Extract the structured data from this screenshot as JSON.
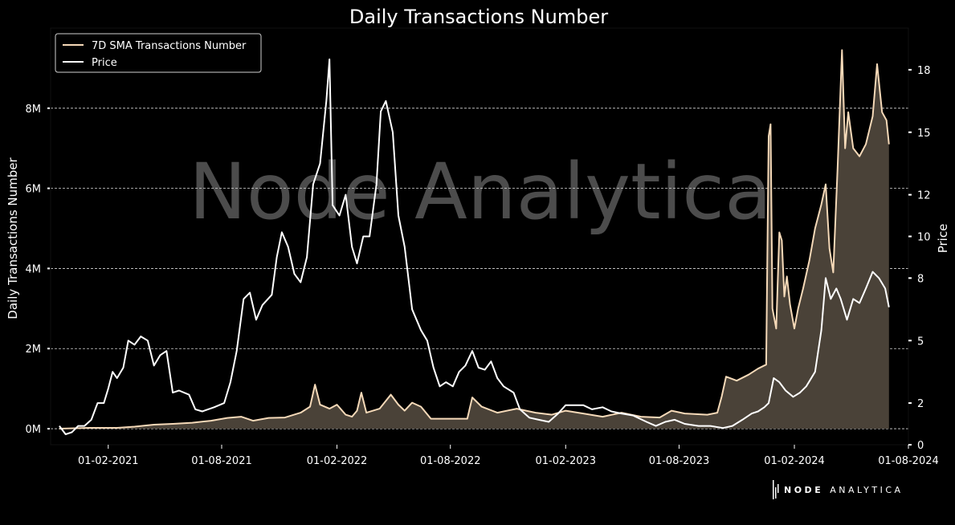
{
  "chart_data": {
    "type": "line",
    "title": "Daily Transactions Number",
    "ylabel_left": "Daily Transactions Number",
    "ylabel_right": "Price",
    "watermark": "Node Analytica",
    "brand": {
      "bold": "NODE",
      "light": "ANALYTICA"
    },
    "grid": "horizontal-dashed",
    "legend_position": "top-left",
    "x_range": [
      "2020-11-01",
      "2024-08-01"
    ],
    "x_ticks": [
      {
        "date": "2021-02-01",
        "label": "01-02-2021"
      },
      {
        "date": "2021-08-01",
        "label": "01-08-2021"
      },
      {
        "date": "2022-02-01",
        "label": "01-02-2022"
      },
      {
        "date": "2022-08-01",
        "label": "01-08-2022"
      },
      {
        "date": "2023-02-01",
        "label": "01-02-2023"
      },
      {
        "date": "2023-08-01",
        "label": "01-08-2023"
      },
      {
        "date": "2024-02-01",
        "label": "01-02-2024"
      },
      {
        "date": "2024-08-01",
        "label": "01-08-2024"
      }
    ],
    "y_left": {
      "range": [
        -400000,
        10000000
      ],
      "ticks": [
        {
          "v": 0,
          "label": "0M"
        },
        {
          "v": 2000000,
          "label": "2M"
        },
        {
          "v": 4000000,
          "label": "4M"
        },
        {
          "v": 6000000,
          "label": "6M"
        },
        {
          "v": 8000000,
          "label": "8M"
        }
      ]
    },
    "y_right": {
      "range": [
        0,
        20
      ],
      "ticks": [
        {
          "v": 0,
          "label": "0"
        },
        {
          "v": 2,
          "label": "2"
        },
        {
          "v": 5,
          "label": "5"
        },
        {
          "v": 8,
          "label": "8"
        },
        {
          "v": 10,
          "label": "10"
        },
        {
          "v": 12,
          "label": "12"
        },
        {
          "v": 15,
          "label": "15"
        },
        {
          "v": 18,
          "label": "18"
        }
      ]
    },
    "series": [
      {
        "name": "7D SMA Transactions Number",
        "axis": "left",
        "color": "#f5d9b8",
        "fill": "#4a4238",
        "points": [
          [
            "2020-11-15",
            0
          ],
          [
            "2021-01-01",
            20000
          ],
          [
            "2021-02-15",
            20000
          ],
          [
            "2021-03-15",
            50000
          ],
          [
            "2021-04-15",
            100000
          ],
          [
            "2021-05-15",
            120000
          ],
          [
            "2021-06-15",
            150000
          ],
          [
            "2021-07-15",
            200000
          ],
          [
            "2021-08-10",
            270000
          ],
          [
            "2021-09-01",
            300000
          ],
          [
            "2021-09-20",
            200000
          ],
          [
            "2021-10-15",
            270000
          ],
          [
            "2021-11-10",
            280000
          ],
          [
            "2021-12-05",
            400000
          ],
          [
            "2021-12-20",
            550000
          ],
          [
            "2021-12-28",
            1100000
          ],
          [
            "2022-01-05",
            600000
          ],
          [
            "2022-01-20",
            500000
          ],
          [
            "2022-02-01",
            600000
          ],
          [
            "2022-02-15",
            350000
          ],
          [
            "2022-02-25",
            300000
          ],
          [
            "2022-03-05",
            450000
          ],
          [
            "2022-03-12",
            900000
          ],
          [
            "2022-03-20",
            400000
          ],
          [
            "2022-04-10",
            500000
          ],
          [
            "2022-04-28",
            850000
          ],
          [
            "2022-05-10",
            600000
          ],
          [
            "2022-05-20",
            450000
          ],
          [
            "2022-06-01",
            650000
          ],
          [
            "2022-06-15",
            550000
          ],
          [
            "2022-07-01",
            250000
          ],
          [
            "2022-07-20",
            250000
          ],
          [
            "2022-08-15",
            250000
          ],
          [
            "2022-08-28",
            250000
          ],
          [
            "2022-09-05",
            780000
          ],
          [
            "2022-09-20",
            550000
          ],
          [
            "2022-10-15",
            400000
          ],
          [
            "2022-11-15",
            500000
          ],
          [
            "2022-12-15",
            400000
          ],
          [
            "2023-01-10",
            350000
          ],
          [
            "2023-02-01",
            450000
          ],
          [
            "2023-03-01",
            380000
          ],
          [
            "2023-04-01",
            300000
          ],
          [
            "2023-05-01",
            400000
          ],
          [
            "2023-06-01",
            300000
          ],
          [
            "2023-07-01",
            280000
          ],
          [
            "2023-07-20",
            450000
          ],
          [
            "2023-08-10",
            380000
          ],
          [
            "2023-09-15",
            350000
          ],
          [
            "2023-10-01",
            400000
          ],
          [
            "2023-10-08",
            800000
          ],
          [
            "2023-10-15",
            1300000
          ],
          [
            "2023-11-01",
            1200000
          ],
          [
            "2023-11-20",
            1350000
          ],
          [
            "2023-12-05",
            1500000
          ],
          [
            "2023-12-18",
            1600000
          ],
          [
            "2023-12-22",
            7300000
          ],
          [
            "2023-12-25",
            7600000
          ],
          [
            "2023-12-28",
            3000000
          ],
          [
            "2024-01-03",
            2500000
          ],
          [
            "2024-01-08",
            4900000
          ],
          [
            "2024-01-12",
            4700000
          ],
          [
            "2024-01-16",
            3300000
          ],
          [
            "2024-01-20",
            3800000
          ],
          [
            "2024-01-25",
            3100000
          ],
          [
            "2024-02-01",
            2500000
          ],
          [
            "2024-02-07",
            3000000
          ],
          [
            "2024-02-15",
            3500000
          ],
          [
            "2024-02-25",
            4200000
          ],
          [
            "2024-03-05",
            5000000
          ],
          [
            "2024-03-15",
            5600000
          ],
          [
            "2024-03-22",
            6100000
          ],
          [
            "2024-03-28",
            4500000
          ],
          [
            "2024-04-03",
            3900000
          ],
          [
            "2024-04-10",
            6500000
          ],
          [
            "2024-04-17",
            9450000
          ],
          [
            "2024-04-22",
            7000000
          ],
          [
            "2024-04-27",
            7900000
          ],
          [
            "2024-05-05",
            7000000
          ],
          [
            "2024-05-15",
            6800000
          ],
          [
            "2024-05-25",
            7100000
          ],
          [
            "2024-06-05",
            7800000
          ],
          [
            "2024-06-12",
            9100000
          ],
          [
            "2024-06-20",
            7900000
          ],
          [
            "2024-06-27",
            7700000
          ],
          [
            "2024-07-01",
            7100000
          ]
        ]
      },
      {
        "name": "Price",
        "axis": "right",
        "color": "#ffffff",
        "points": [
          [
            "2020-11-15",
            0.9
          ],
          [
            "2020-11-25",
            0.5
          ],
          [
            "2020-12-05",
            0.6
          ],
          [
            "2020-12-15",
            0.9
          ],
          [
            "2020-12-25",
            0.9
          ],
          [
            "2021-01-05",
            1.2
          ],
          [
            "2021-01-15",
            2.0
          ],
          [
            "2021-01-25",
            2.0
          ],
          [
            "2021-02-01",
            2.7
          ],
          [
            "2021-02-08",
            3.5
          ],
          [
            "2021-02-15",
            3.2
          ],
          [
            "2021-02-25",
            3.7
          ],
          [
            "2021-03-05",
            5.0
          ],
          [
            "2021-03-15",
            4.8
          ],
          [
            "2021-03-25",
            5.2
          ],
          [
            "2021-04-05",
            5.0
          ],
          [
            "2021-04-15",
            3.8
          ],
          [
            "2021-04-25",
            4.3
          ],
          [
            "2021-05-05",
            4.5
          ],
          [
            "2021-05-15",
            2.5
          ],
          [
            "2021-05-25",
            2.6
          ],
          [
            "2021-06-10",
            2.4
          ],
          [
            "2021-06-20",
            1.7
          ],
          [
            "2021-07-01",
            1.6
          ],
          [
            "2021-07-20",
            1.8
          ],
          [
            "2021-08-05",
            2.0
          ],
          [
            "2021-08-15",
            3.0
          ],
          [
            "2021-08-25",
            4.5
          ],
          [
            "2021-09-05",
            7.0
          ],
          [
            "2021-09-15",
            7.3
          ],
          [
            "2021-09-25",
            6.0
          ],
          [
            "2021-10-05",
            6.7
          ],
          [
            "2021-10-20",
            7.2
          ],
          [
            "2021-10-28",
            9.0
          ],
          [
            "2021-11-05",
            10.2
          ],
          [
            "2021-11-15",
            9.5
          ],
          [
            "2021-11-25",
            8.2
          ],
          [
            "2021-12-05",
            7.8
          ],
          [
            "2021-12-15",
            9.0
          ],
          [
            "2021-12-25",
            12.5
          ],
          [
            "2022-01-05",
            13.5
          ],
          [
            "2022-01-15",
            16.5
          ],
          [
            "2022-01-20",
            18.5
          ],
          [
            "2022-01-25",
            11.5
          ],
          [
            "2022-02-05",
            11.0
          ],
          [
            "2022-02-15",
            12.0
          ],
          [
            "2022-02-25",
            9.5
          ],
          [
            "2022-03-05",
            8.7
          ],
          [
            "2022-03-15",
            10.0
          ],
          [
            "2022-03-25",
            10.0
          ],
          [
            "2022-04-05",
            12.5
          ],
          [
            "2022-04-12",
            16.0
          ],
          [
            "2022-04-20",
            16.5
          ],
          [
            "2022-05-01",
            15.0
          ],
          [
            "2022-05-10",
            11.0
          ],
          [
            "2022-05-20",
            9.5
          ],
          [
            "2022-06-01",
            6.5
          ],
          [
            "2022-06-15",
            5.5
          ],
          [
            "2022-06-25",
            5.0
          ],
          [
            "2022-07-05",
            3.7
          ],
          [
            "2022-07-15",
            2.8
          ],
          [
            "2022-07-25",
            3.0
          ],
          [
            "2022-08-05",
            2.8
          ],
          [
            "2022-08-15",
            3.5
          ],
          [
            "2022-08-25",
            3.8
          ],
          [
            "2022-09-05",
            4.5
          ],
          [
            "2022-09-15",
            3.7
          ],
          [
            "2022-09-25",
            3.6
          ],
          [
            "2022-10-05",
            4.0
          ],
          [
            "2022-10-15",
            3.2
          ],
          [
            "2022-10-25",
            2.8
          ],
          [
            "2022-11-10",
            2.5
          ],
          [
            "2022-11-20",
            1.7
          ],
          [
            "2022-12-05",
            1.3
          ],
          [
            "2022-12-20",
            1.2
          ],
          [
            "2023-01-05",
            1.1
          ],
          [
            "2023-01-20",
            1.5
          ],
          [
            "2023-02-01",
            1.9
          ],
          [
            "2023-02-15",
            1.9
          ],
          [
            "2023-03-01",
            1.9
          ],
          [
            "2023-03-15",
            1.7
          ],
          [
            "2023-04-01",
            1.8
          ],
          [
            "2023-04-15",
            1.6
          ],
          [
            "2023-05-01",
            1.5
          ],
          [
            "2023-05-20",
            1.4
          ],
          [
            "2023-06-10",
            1.1
          ],
          [
            "2023-06-25",
            0.9
          ],
          [
            "2023-07-10",
            1.1
          ],
          [
            "2023-07-25",
            1.2
          ],
          [
            "2023-08-10",
            1.0
          ],
          [
            "2023-09-01",
            0.9
          ],
          [
            "2023-09-20",
            0.9
          ],
          [
            "2023-10-10",
            0.8
          ],
          [
            "2023-10-25",
            0.9
          ],
          [
            "2023-11-10",
            1.2
          ],
          [
            "2023-11-25",
            1.5
          ],
          [
            "2023-12-05",
            1.6
          ],
          [
            "2023-12-15",
            1.8
          ],
          [
            "2023-12-22",
            2.0
          ],
          [
            "2023-12-30",
            3.2
          ],
          [
            "2024-01-08",
            3.0
          ],
          [
            "2024-01-18",
            2.6
          ],
          [
            "2024-01-30",
            2.3
          ],
          [
            "2024-02-10",
            2.5
          ],
          [
            "2024-02-20",
            2.8
          ],
          [
            "2024-03-05",
            3.5
          ],
          [
            "2024-03-15",
            5.5
          ],
          [
            "2024-03-22",
            8.0
          ],
          [
            "2024-03-30",
            7.0
          ],
          [
            "2024-04-08",
            7.5
          ],
          [
            "2024-04-15",
            7.0
          ],
          [
            "2024-04-25",
            6.0
          ],
          [
            "2024-05-05",
            7.0
          ],
          [
            "2024-05-15",
            6.8
          ],
          [
            "2024-05-25",
            7.5
          ],
          [
            "2024-06-05",
            8.3
          ],
          [
            "2024-06-15",
            8.0
          ],
          [
            "2024-06-25",
            7.5
          ],
          [
            "2024-07-01",
            6.6
          ]
        ]
      }
    ]
  }
}
